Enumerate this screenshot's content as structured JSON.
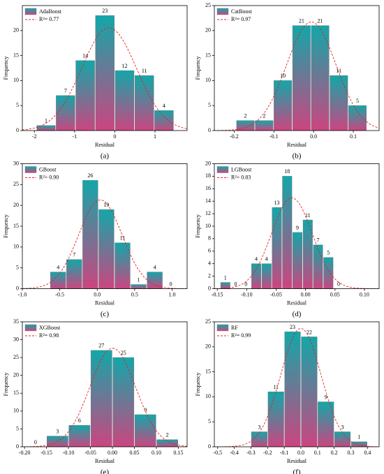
{
  "chart_data": [
    {
      "type": "histogram",
      "panel_label": "(a)",
      "name": "AdaBoost",
      "fit_label": "R²= 0.77",
      "xlabel": "Residual",
      "ylabel": "Frequency",
      "bins": [
        -1.95,
        -1.47,
        -0.98,
        -0.49,
        0,
        0.49,
        0.98,
        1.47
      ],
      "counts": [
        1,
        7,
        14,
        23,
        12,
        11,
        4
      ],
      "xlim": [
        -2.3,
        1.8
      ],
      "xticks": [
        -2,
        -1,
        0,
        1
      ],
      "ylim": [
        0,
        25
      ],
      "yticks": [
        0,
        5,
        10,
        15,
        20
      ],
      "colors": {
        "top": "#12a7a9",
        "bottom": "#cc4580"
      },
      "fit_color": "#e8201c",
      "legend": "upper left"
    },
    {
      "type": "histogram",
      "panel_label": "(b)",
      "name": "CatBoost",
      "fit_label": "R²= 0.97",
      "xlabel": "Residual",
      "ylabel": "Frequency",
      "bins": [
        -0.195,
        -0.148,
        -0.101,
        -0.054,
        -0.007,
        0.04,
        0.087,
        0.134
      ],
      "counts": [
        2,
        2,
        10,
        21,
        21,
        11,
        5
      ],
      "xlim": [
        -0.25,
        0.165
      ],
      "xticks": [
        -0.2,
        -0.1,
        {
          "value": 0,
          "label": "0.0"
        },
        0.1
      ],
      "ylim": [
        0,
        25
      ],
      "yticks": [
        0,
        5,
        10,
        15,
        20,
        25
      ],
      "colors": {
        "top": "#12a7a9",
        "bottom": "#cc4580"
      },
      "fit_color": "#e8201c",
      "legend": "upper left"
    },
    {
      "type": "histogram",
      "panel_label": "(c)",
      "name": "GBoost",
      "fit_label": "R²= 0.90",
      "xlabel": "Residual",
      "ylabel": "Frequency",
      "bins": [
        -0.63,
        -0.415,
        -0.2,
        0.015,
        0.23,
        0.445,
        0.66,
        0.875,
        1.09
      ],
      "counts": [
        4,
        7,
        26,
        19,
        11,
        1,
        4,
        0
      ],
      "xlim": [
        -1.0,
        1.2
      ],
      "xticks": [
        {
          "value": -1,
          "label": "-1.0"
        },
        -0.5,
        {
          "value": 0,
          "label": "0.0"
        },
        0.5,
        {
          "value": 1,
          "label": "1.0"
        }
      ],
      "ylim": [
        0,
        30
      ],
      "yticks": [
        0,
        5,
        10,
        15,
        20,
        25,
        30
      ],
      "colors": {
        "top": "#12a7a9",
        "bottom": "#cc4580"
      },
      "fit_color": "#e8201c",
      "legend": "upper left"
    },
    {
      "type": "histogram",
      "panel_label": "(d)",
      "name": "LGBoost",
      "fit_label": "R²= 0.83",
      "xlabel": "Residual",
      "ylabel": "Frequency",
      "bins": [
        -0.145,
        -0.1275,
        -0.11,
        -0.0925,
        -0.075,
        -0.0575,
        -0.04,
        -0.0225,
        -0.005,
        0.0125,
        0.03,
        0.0475,
        0.065
      ],
      "counts": [
        1,
        0,
        0,
        4,
        4,
        13,
        18,
        9,
        11,
        7,
        5,
        0
      ],
      "xlim": [
        -0.155,
        0.125
      ],
      "xticks": [
        -0.15,
        {
          "value": -0.1,
          "label": "-0.10"
        },
        -0.05,
        {
          "value": 0,
          "label": "0.00"
        },
        0.05,
        {
          "value": 0.1,
          "label": "0.10"
        }
      ],
      "ylim": [
        0,
        20
      ],
      "yticks": [
        0,
        2,
        4,
        6,
        8,
        10,
        12,
        14,
        16,
        18,
        20
      ],
      "colors": {
        "top": "#12a7a9",
        "bottom": "#cc4580"
      },
      "fit_color": "#e8201c",
      "legend": "upper left"
    },
    {
      "type": "histogram",
      "panel_label": "(e)",
      "name": "XGBoost",
      "fit_label": "R²= 0.98",
      "xlabel": "Residual",
      "ylabel": "Frequency",
      "bins": [
        -0.2,
        -0.15,
        -0.1,
        -0.05,
        0,
        0.05,
        0.1,
        0.15
      ],
      "counts": [
        0,
        3,
        6,
        27,
        25,
        9,
        2
      ],
      "xlim": [
        -0.205,
        0.17
      ],
      "xticks": [
        {
          "value": -0.2,
          "label": "-0.20"
        },
        -0.15,
        {
          "value": -0.1,
          "label": "-0.10"
        },
        -0.05,
        {
          "value": 0,
          "label": "0.00"
        },
        0.05,
        {
          "value": 0.1,
          "label": "0.10"
        },
        0.15
      ],
      "ylim": [
        0,
        35
      ],
      "yticks": [
        0,
        5,
        10,
        15,
        20,
        25,
        30,
        35
      ],
      "colors": {
        "top": "#12a7a9",
        "bottom": "#cc4580"
      },
      "fit_color": "#e8201c",
      "legend": "upper left"
    },
    {
      "type": "histogram",
      "panel_label": "(f)",
      "name": "RF",
      "fit_label": "R²= 0.99",
      "xlabel": "Residual",
      "ylabel": "Frequency",
      "bins": [
        -0.3,
        -0.2,
        -0.1,
        0,
        0.1,
        0.2,
        0.3,
        0.4
      ],
      "counts": [
        3,
        11,
        23,
        22,
        9,
        3,
        1
      ],
      "xlim": [
        -0.52,
        0.47
      ],
      "xticks": [
        -0.5,
        -0.4,
        -0.3,
        -0.2,
        -0.1,
        {
          "value": 0,
          "label": "0.0"
        },
        0.1,
        0.2,
        0.3,
        0.4
      ],
      "ylim": [
        0,
        25
      ],
      "yticks": [
        0,
        5,
        10,
        15,
        20,
        25
      ],
      "colors": {
        "top": "#12a7a9",
        "bottom": "#cc4580"
      },
      "fit_color": "#e8201c",
      "legend": "upper left"
    }
  ]
}
